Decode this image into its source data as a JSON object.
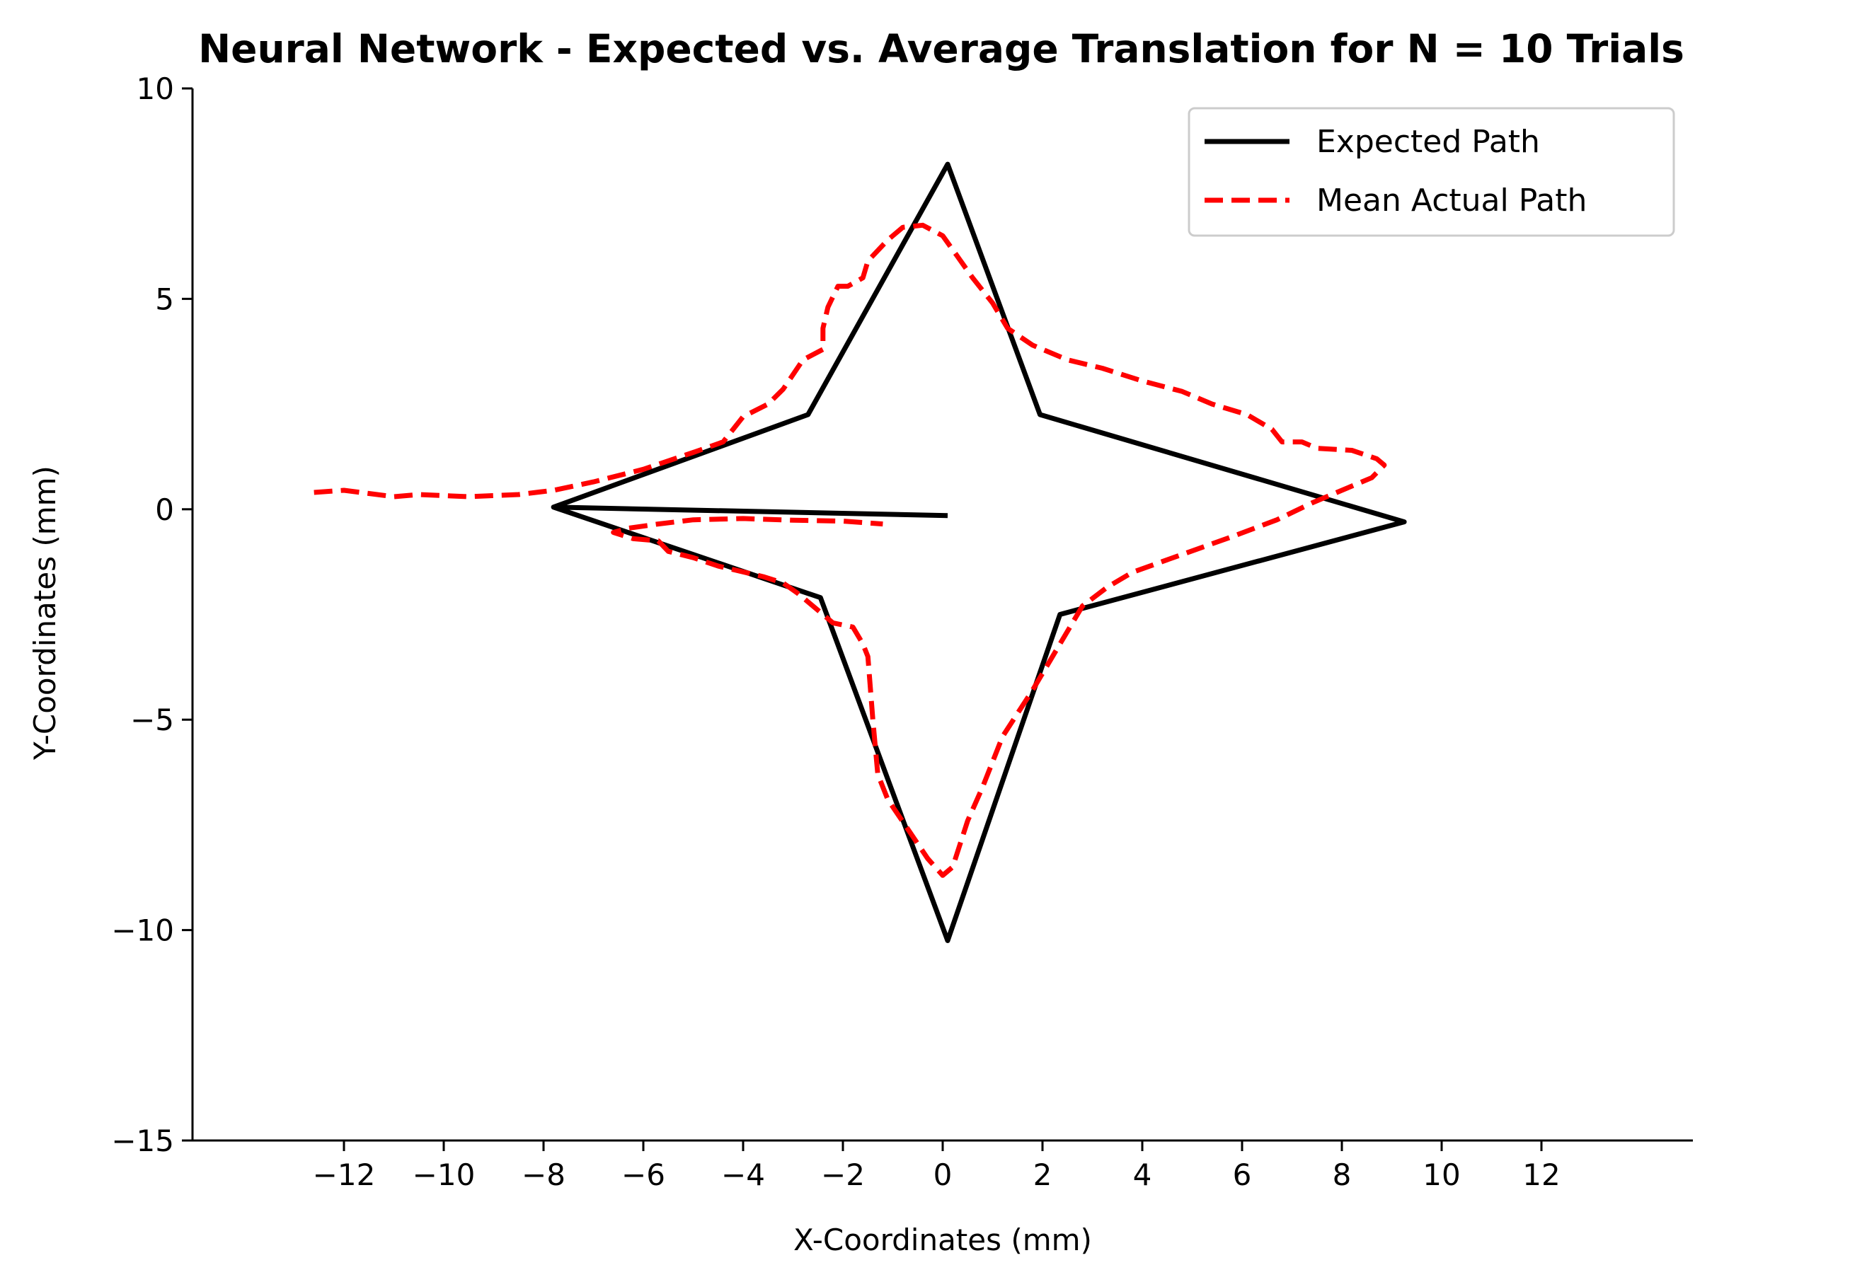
{
  "chart_data": {
    "type": "line",
    "title": "Neural Network - Expected vs. Average Translation for N = 10 Trials",
    "xlabel": "X-Coordinates (mm)",
    "ylabel": "Y-Coordinates (mm)",
    "xlim": [
      -15,
      15
    ],
    "ylim": [
      -15,
      10
    ],
    "xticks": [
      -12,
      -10,
      -8,
      -6,
      -4,
      -2,
      0,
      2,
      4,
      6,
      8,
      10,
      12
    ],
    "xtick_labels": [
      "−12",
      "−10",
      "−8",
      "−6",
      "−4",
      "−2",
      "0",
      "2",
      "4",
      "6",
      "8",
      "10",
      "12"
    ],
    "yticks": [
      10,
      5,
      0,
      -5,
      -10,
      -15
    ],
    "ytick_labels": [
      "10",
      "5",
      "0",
      "−5",
      "−10",
      "−15"
    ],
    "legend_position": "top-right",
    "series": [
      {
        "name": "Expected Path",
        "color": "#000000",
        "style": "solid",
        "points": [
          [
            0.1,
            -0.15
          ],
          [
            -7.8,
            0.05
          ],
          [
            -2.7,
            2.25
          ],
          [
            0.1,
            8.2
          ],
          [
            1.95,
            2.25
          ],
          [
            9.25,
            -0.3
          ],
          [
            2.35,
            -2.5
          ],
          [
            0.1,
            -10.25
          ],
          [
            -2.45,
            -2.1
          ],
          [
            -7.8,
            0.05
          ]
        ]
      },
      {
        "name": "Mean Actual Path",
        "color": "#ff0000",
        "style": "dashed",
        "points": [
          [
            -12.6,
            0.4
          ],
          [
            -12.0,
            0.45
          ],
          [
            -11.0,
            0.3
          ],
          [
            -10.5,
            0.35
          ],
          [
            -9.5,
            0.3
          ],
          [
            -8.5,
            0.35
          ],
          [
            -7.8,
            0.45
          ],
          [
            -7.0,
            0.65
          ],
          [
            -6.0,
            0.95
          ],
          [
            -5.0,
            1.35
          ],
          [
            -4.4,
            1.6
          ],
          [
            -4.0,
            2.2
          ],
          [
            -3.5,
            2.5
          ],
          [
            -3.2,
            2.85
          ],
          [
            -2.8,
            3.55
          ],
          [
            -2.4,
            3.8
          ],
          [
            -2.4,
            4.3
          ],
          [
            -2.3,
            4.8
          ],
          [
            -2.1,
            5.3
          ],
          [
            -1.9,
            5.3
          ],
          [
            -1.6,
            5.5
          ],
          [
            -1.5,
            5.9
          ],
          [
            -1.1,
            6.4
          ],
          [
            -0.8,
            6.7
          ],
          [
            -0.4,
            6.75
          ],
          [
            0.0,
            6.5
          ],
          [
            0.3,
            6.0
          ],
          [
            0.6,
            5.5
          ],
          [
            1.0,
            4.9
          ],
          [
            1.3,
            4.3
          ],
          [
            1.8,
            3.9
          ],
          [
            2.5,
            3.55
          ],
          [
            3.2,
            3.35
          ],
          [
            4.0,
            3.05
          ],
          [
            4.8,
            2.8
          ],
          [
            5.4,
            2.5
          ],
          [
            6.1,
            2.25
          ],
          [
            6.6,
            1.9
          ],
          [
            6.8,
            1.6
          ],
          [
            7.2,
            1.6
          ],
          [
            7.5,
            1.45
          ],
          [
            8.2,
            1.4
          ],
          [
            8.7,
            1.2
          ],
          [
            8.85,
            1.05
          ],
          [
            8.6,
            0.75
          ],
          [
            8.0,
            0.45
          ],
          [
            7.4,
            0.15
          ],
          [
            6.7,
            -0.25
          ],
          [
            5.8,
            -0.65
          ],
          [
            4.5,
            -1.2
          ],
          [
            3.8,
            -1.5
          ],
          [
            3.3,
            -1.85
          ],
          [
            2.8,
            -2.3
          ],
          [
            2.3,
            -3.3
          ],
          [
            1.8,
            -4.3
          ],
          [
            1.2,
            -5.4
          ],
          [
            0.8,
            -6.6
          ],
          [
            0.5,
            -7.4
          ],
          [
            0.2,
            -8.5
          ],
          [
            0.0,
            -8.7
          ],
          [
            -0.3,
            -8.3
          ],
          [
            -0.7,
            -7.6
          ],
          [
            -1.1,
            -6.9
          ],
          [
            -1.3,
            -6.3
          ],
          [
            -1.4,
            -5.0
          ],
          [
            -1.5,
            -3.5
          ],
          [
            -1.6,
            -3.2
          ],
          [
            -1.8,
            -2.8
          ],
          [
            -2.2,
            -2.7
          ],
          [
            -2.5,
            -2.4
          ],
          [
            -2.9,
            -2.0
          ],
          [
            -3.2,
            -1.75
          ],
          [
            -3.6,
            -1.6
          ],
          [
            -4.5,
            -1.35
          ],
          [
            -5.0,
            -1.15
          ],
          [
            -5.5,
            -1.0
          ],
          [
            -5.7,
            -0.75
          ],
          [
            -6.2,
            -0.7
          ],
          [
            -6.6,
            -0.55
          ],
          [
            -6.3,
            -0.45
          ],
          [
            -5.7,
            -0.35
          ],
          [
            -5.0,
            -0.25
          ],
          [
            -4.0,
            -0.22
          ],
          [
            -3.0,
            -0.26
          ],
          [
            -2.0,
            -0.28
          ],
          [
            -1.2,
            -0.35
          ]
        ]
      }
    ]
  }
}
